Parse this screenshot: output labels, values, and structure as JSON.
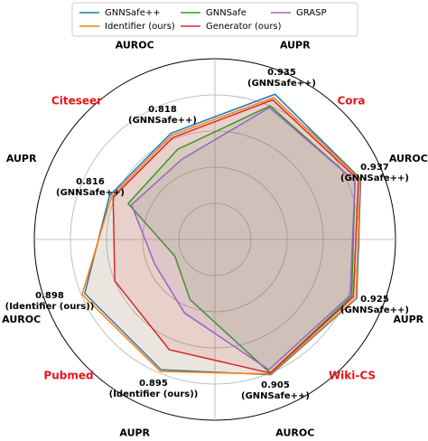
{
  "chart_data": {
    "type": "radar",
    "categories": [
      "AUPR",
      "AUROC",
      "AUPR",
      "AUROC",
      "AUPR",
      "AUROC",
      "AUPR",
      "AUROC"
    ],
    "groups": [
      "Cora",
      "Wiki-CS",
      "Pubmed",
      "Citeseer"
    ],
    "series": [
      {
        "name": "GNNSafe++",
        "color": "#1f77b4",
        "values": [
          0.935,
          0.937,
          0.925,
          0.905,
          0.89,
          0.89,
          0.816,
          0.818
        ]
      },
      {
        "name": "Identifier (ours)",
        "color": "#ff7f0e",
        "values": [
          0.925,
          0.935,
          0.923,
          0.903,
          0.895,
          0.898,
          0.81,
          0.812
        ]
      },
      {
        "name": "GNNSafe",
        "color": "#2ca02c",
        "values": [
          0.9,
          0.92,
          0.91,
          0.9,
          0.68,
          0.62,
          0.76,
          0.77
        ]
      },
      {
        "name": "Generator (ours)",
        "color": "#d62728",
        "values": [
          0.918,
          0.93,
          0.915,
          0.9,
          0.83,
          0.8,
          0.805,
          0.805
        ]
      },
      {
        "name": "GRASP",
        "color": "#9467bd",
        "values": [
          0.895,
          0.92,
          0.905,
          0.89,
          0.72,
          0.68,
          0.75,
          0.74
        ]
      }
    ],
    "ylim": [
      0.5,
      1.0
    ],
    "yticks": [
      0.6,
      0.7,
      0.8,
      0.9,
      1.0
    ],
    "grid": true,
    "legend": "top",
    "annotations": [
      {
        "value": "0.935",
        "source": "(GNNSafe++)"
      },
      {
        "value": "0.937",
        "source": "(GNNSafe++)"
      },
      {
        "value": "0.925",
        "source": "(GNNSafe++)"
      },
      {
        "value": "0.905",
        "source": "(GNNSafe++)"
      },
      {
        "value": "0.895",
        "source": "(Identifier (ours))"
      },
      {
        "value": "0.898",
        "source": "(Identifier (ours))"
      },
      {
        "value": "0.816",
        "source": "(GNNSafe++)"
      },
      {
        "value": "0.818",
        "source": "(GNNSafe++)"
      }
    ]
  }
}
